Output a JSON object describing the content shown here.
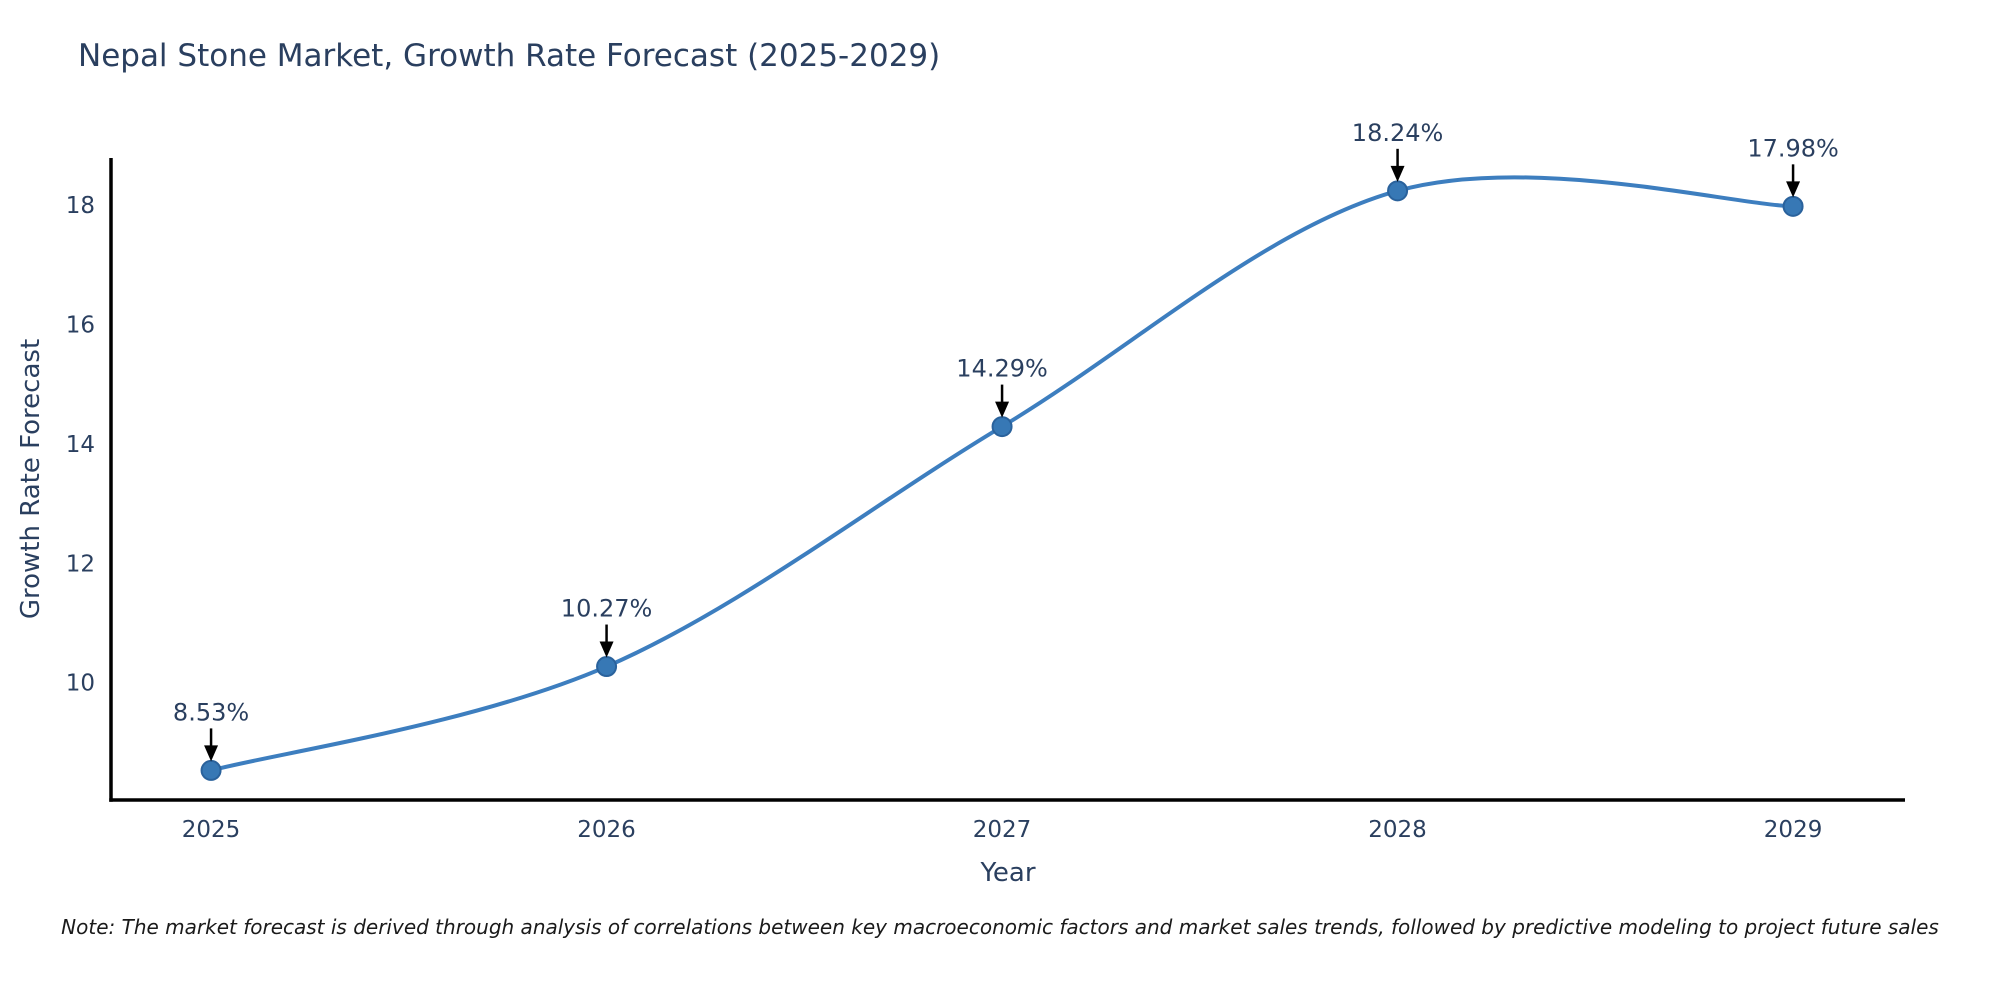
{
  "chart_data": {
    "type": "line",
    "title": "Nepal Stone Market, Growth Rate Forecast (2025-2029)",
    "xlabel": "Year",
    "ylabel": "Growth Rate Forecast",
    "x": [
      2025,
      2026,
      2027,
      2028,
      2029
    ],
    "y": [
      8.53,
      10.27,
      14.29,
      18.24,
      17.98
    ],
    "point_labels": [
      "8.53%",
      "10.27%",
      "14.29%",
      "18.24%",
      "17.98%"
    ],
    "x_ticks": [
      2025,
      2026,
      2027,
      2028,
      2029
    ],
    "y_ticks": [
      10,
      12,
      14,
      16,
      18
    ],
    "xlim": [
      2024.747,
      2029.283
    ],
    "ylim": [
      8.034,
      18.79
    ],
    "line_shape": "spline",
    "grid": false,
    "legend": "none",
    "colors": {
      "line": "#3d7ebf",
      "marker_fill": "#3778b5",
      "marker_edge": "#2a629c",
      "axis": "#000000",
      "text": "#2a3f5f",
      "annotation_arrow": "#000000",
      "background": "#ffffff"
    }
  },
  "note": "Note: The market forecast is derived through analysis of correlations between key macroeconomic factors and market sales trends, followed by predictive modeling to project future sales"
}
